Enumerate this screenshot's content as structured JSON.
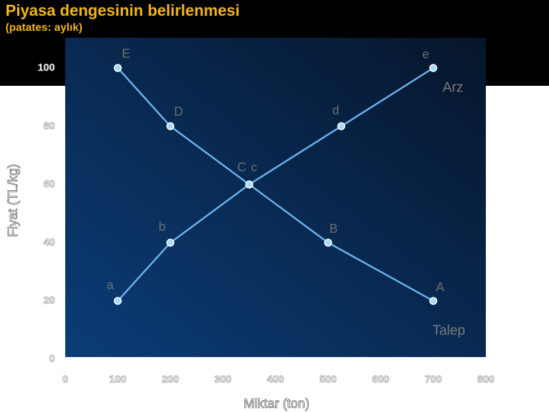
{
  "chart_data": {
    "type": "line",
    "title": "Piyasa dengesinin belirlenmesi",
    "subtitle": "(patates: aylık)",
    "x_label": "Miktar (ton)",
    "y_label": "Fiyat (TL/kg)",
    "xlim": [
      0,
      800
    ],
    "ylim": [
      0,
      110
    ],
    "xticks": [
      0,
      100,
      200,
      300,
      400,
      500,
      600,
      700,
      800
    ],
    "yticks": [
      0,
      20,
      40,
      60,
      80,
      100
    ],
    "series": [
      {
        "name": "Talep",
        "color": "#6cb4ee",
        "x": [
          100,
          200,
          350,
          500,
          700
        ],
        "values": [
          100,
          80,
          60,
          40,
          20
        ],
        "point_labels": [
          "E",
          "D",
          "C",
          "B",
          "A"
        ]
      },
      {
        "name": "Arz",
        "color": "#6cb4ee",
        "x": [
          100,
          200,
          350,
          525,
          700
        ],
        "values": [
          20,
          40,
          60,
          80,
          100
        ],
        "point_labels": [
          "a",
          "b",
          "c",
          "d",
          "e"
        ]
      }
    ]
  }
}
